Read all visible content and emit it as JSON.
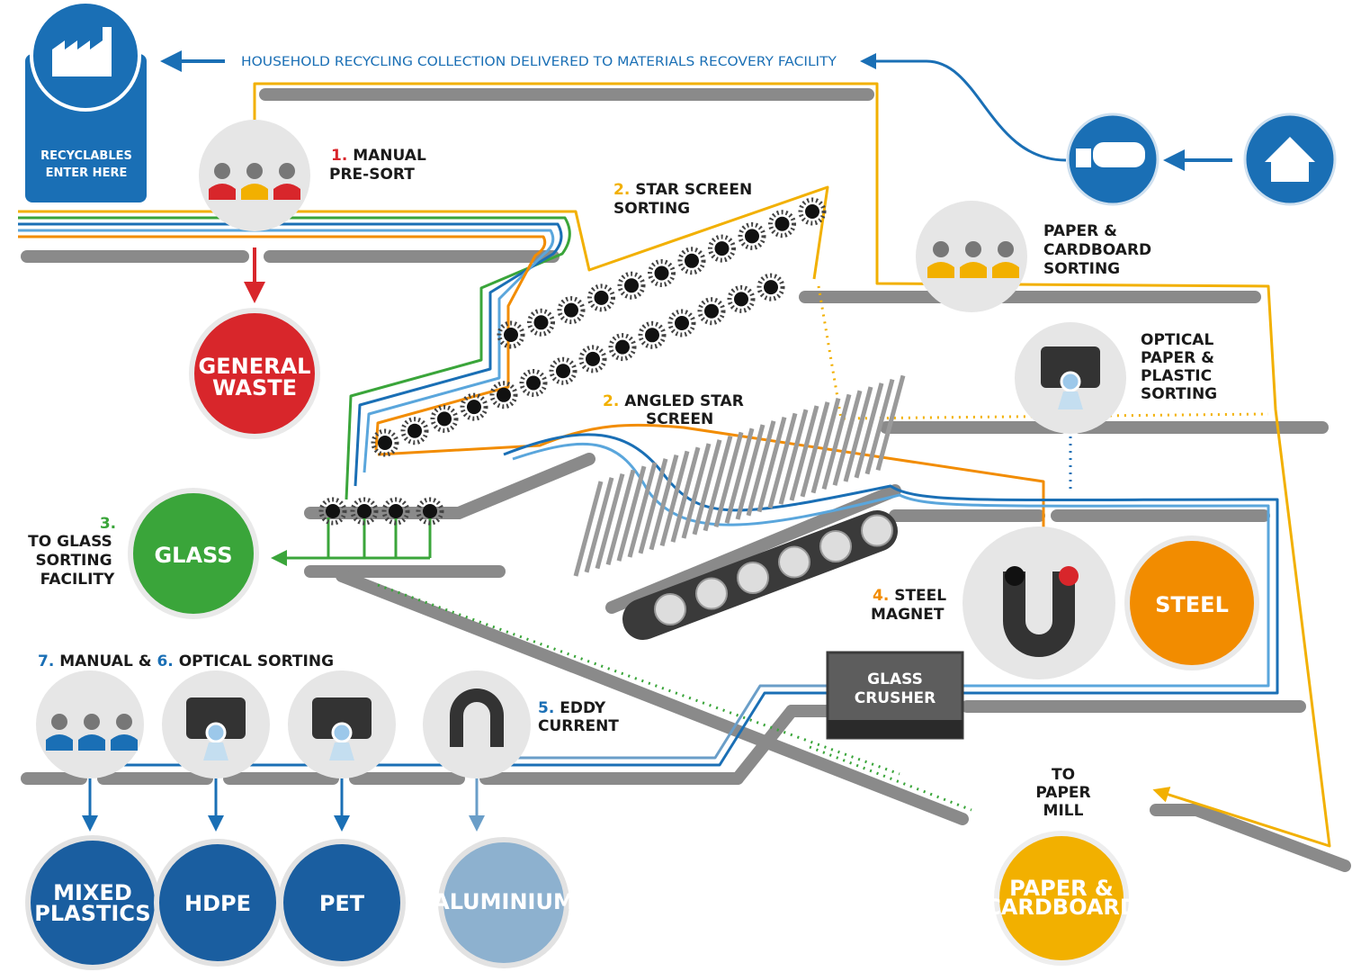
{
  "header": {
    "collection": "HOUSEHOLD RECYCLING COLLECTION DELIVERED TO MATERIALS RECOVERY FACILITY",
    "entry": [
      "RECYCLABLES",
      "ENTER HERE"
    ]
  },
  "steps": {
    "pre_sort": {
      "number": "1.",
      "label": [
        "MANUAL",
        "PRE-SORT"
      ]
    },
    "star_screen": {
      "number": "2.",
      "label": [
        "STAR SCREEN",
        "SORTING"
      ]
    },
    "angled_screen": {
      "number": "2.",
      "label": [
        "ANGLED STAR",
        "SCREEN"
      ]
    },
    "glass": {
      "number": "3.",
      "label": [
        "TO GLASS",
        "SORTING",
        "FACILITY"
      ]
    },
    "magnet": {
      "number": "4.",
      "label": [
        "STEEL",
        "MAGNET"
      ]
    },
    "eddy": {
      "number": "5.",
      "label": [
        "EDDY",
        "CURRENT"
      ]
    },
    "manual": {
      "number": "7.",
      "label": "MANUAL &"
    },
    "optical": {
      "number": "6.",
      "label": "OPTICAL SORTING"
    }
  },
  "stations": {
    "paper_sorting": [
      "PAPER &",
      "CARDBOARD",
      "SORTING"
    ],
    "optical_paper": [
      "OPTICAL",
      "PAPER &",
      "PLASTIC",
      "SORTING"
    ],
    "crusher": [
      "GLASS",
      "CRUSHER"
    ],
    "paper_mill": [
      "TO",
      "PAPER",
      "MILL"
    ]
  },
  "outputs": {
    "general_waste": [
      "GENERAL",
      "WASTE"
    ],
    "glass": "GLASS",
    "steel": "STEEL",
    "mixed_plastics": [
      "MIXED",
      "PLASTICS"
    ],
    "hdpe": "HDPE",
    "pet": "PET",
    "aluminium": "ALUMINIUM",
    "paper": [
      "PAPER &",
      "CARDBOARD"
    ]
  }
}
